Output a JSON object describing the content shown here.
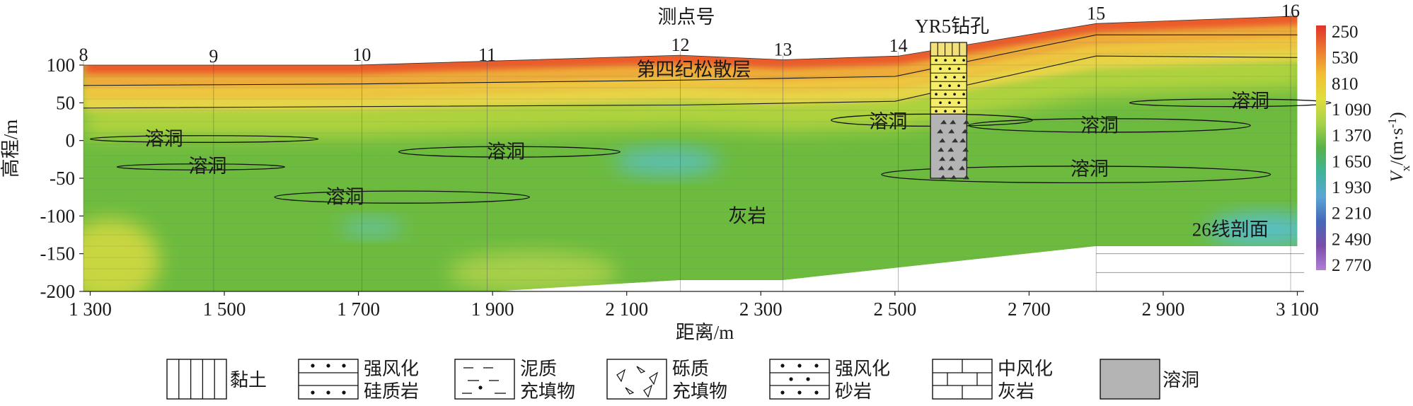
{
  "chart_data": {
    "type": "heatmap",
    "title": "测点号",
    "xlabel": "距离/m",
    "ylabel": "高程/m",
    "xlim": [
      1290,
      3110
    ],
    "ylim": [
      -200,
      100
    ],
    "x_ticks": [
      1300,
      1500,
      1700,
      1900,
      2100,
      2300,
      2500,
      2700,
      2900,
      3100
    ],
    "x_tick_labels": [
      "1 300",
      "1 500",
      "1 700",
      "1 900",
      "2 100",
      "2 300",
      "2 500",
      "2 700",
      "2 900",
      "3 100"
    ],
    "y_ticks": [
      100,
      50,
      0,
      -50,
      -100,
      -150,
      -200
    ],
    "y_tick_labels": [
      "100",
      "50",
      "0",
      "-50",
      "-100",
      "-150",
      "-200"
    ],
    "stations": [
      {
        "label": "8",
        "x": 1290,
        "z": 100
      },
      {
        "label": "9",
        "x": 1484,
        "z": 98
      },
      {
        "label": "10",
        "x": 1705,
        "z": 100
      },
      {
        "label": "11",
        "x": 1892,
        "z": 100
      },
      {
        "label": "12",
        "x": 2180,
        "z": 113
      },
      {
        "label": "13",
        "x": 2333,
        "z": 107
      },
      {
        "label": "14",
        "x": 2505,
        "z": 112
      },
      {
        "label": "15",
        "x": 2800,
        "z": 155
      },
      {
        "label": "16",
        "x": 3090,
        "z": 165
      }
    ],
    "surface": [
      [
        1290,
        100
      ],
      [
        1700,
        100
      ],
      [
        2180,
        113
      ],
      [
        2333,
        107
      ],
      [
        2505,
        112
      ],
      [
        2800,
        155
      ],
      [
        3100,
        165
      ]
    ],
    "bottom": [
      [
        1290,
        -200
      ],
      [
        1900,
        -200
      ],
      [
        2180,
        -185
      ],
      [
        2333,
        -185
      ],
      [
        2800,
        -140
      ],
      [
        3100,
        -140
      ]
    ],
    "layer_lines": [
      [
        [
          1290,
          73
        ],
        [
          1700,
          75
        ],
        [
          2180,
          80
        ],
        [
          2500,
          85
        ],
        [
          2800,
          140
        ],
        [
          3100,
          140
        ]
      ],
      [
        [
          1290,
          43
        ],
        [
          1700,
          45
        ],
        [
          2180,
          47
        ],
        [
          2500,
          52
        ],
        [
          2800,
          112
        ],
        [
          3100,
          110
        ]
      ]
    ],
    "colorbar": {
      "label_var": "V",
      "label_sub": "x",
      "label_unit": "/(m·s",
      "label_exp": "-1",
      "label_close": ")",
      "ticks": [
        "250",
        "530",
        "810",
        "1 090",
        "1 370",
        "1 650",
        "1 930",
        "2 210",
        "2 490",
        "2 770"
      ],
      "colors": [
        "#e0342a",
        "#ec7a30",
        "#f0c034",
        "#dede3c",
        "#a8d24a",
        "#56b248",
        "#3fb49a",
        "#5aa6d4",
        "#4668b8",
        "#7a4ea8",
        "#b27ed6"
      ]
    },
    "cavities": [
      {
        "label": "溶洞",
        "cx": 1470,
        "cy": 2,
        "rx": 170,
        "ry": 4.5,
        "lx": 1410,
        "ly": 2
      },
      {
        "label": "溶洞",
        "cx": 1465,
        "cy": -35,
        "rx": 125,
        "ry": 4,
        "lx": 1475,
        "ly": -34
      },
      {
        "label": "溶洞",
        "cx": 1765,
        "cy": -75,
        "rx": 190,
        "ry": 8,
        "lx": 1680,
        "ly": -75
      },
      {
        "label": "溶洞",
        "cx": 1925,
        "cy": -15,
        "rx": 165,
        "ry": 7,
        "lx": 1920,
        "ly": -15
      },
      {
        "label": "溶洞",
        "cx": 2555,
        "cy": 27,
        "rx": 150,
        "ry": 8,
        "lx": 2490,
        "ly": 25
      },
      {
        "label": "溶洞",
        "cx": 2820,
        "cy": 20,
        "rx": 210,
        "ry": 9,
        "lx": 2805,
        "ly": 20
      },
      {
        "label": "溶洞",
        "cx": 2770,
        "cy": -45,
        "rx": 290,
        "ry": 11,
        "lx": 2790,
        "ly": -38
      },
      {
        "label": "溶洞",
        "cx": 3000,
        "cy": 50,
        "rx": 150,
        "ry": 5,
        "lx": 3030,
        "ly": 52
      }
    ],
    "borehole": {
      "label": "YR5钻孔",
      "x0": 2553,
      "x1": 2607,
      "segments": [
        {
          "lith": "黏土",
          "top": 130,
          "bottom": 112
        },
        {
          "lith": "强风化砂岩",
          "top": 112,
          "bottom": 35
        },
        {
          "lith": "溶洞",
          "top": 35,
          "bottom": -50
        }
      ]
    },
    "annotations": [
      {
        "text": "第四纪松散层",
        "x": 2200,
        "y": 94
      },
      {
        "text": "灰岩",
        "x": 2280,
        "y": -100
      },
      {
        "text": "26线剖面",
        "x": 3000,
        "y": -118
      }
    ],
    "legend": [
      {
        "key": "clay",
        "line1": "黏土",
        "line2": ""
      },
      {
        "key": "siliceous",
        "line1": "强风化",
        "line2": "硅质岩"
      },
      {
        "key": "mud",
        "line1": "泥质",
        "line2": "充填物"
      },
      {
        "key": "gravel",
        "line1": "砾质",
        "line2": "充填物"
      },
      {
        "key": "sandstone",
        "line1": "强风化",
        "line2": "砂岩"
      },
      {
        "key": "limestone",
        "line1": "中风化",
        "line2": "灰岩"
      },
      {
        "key": "cave",
        "line1": "溶洞",
        "line2": ""
      }
    ]
  }
}
